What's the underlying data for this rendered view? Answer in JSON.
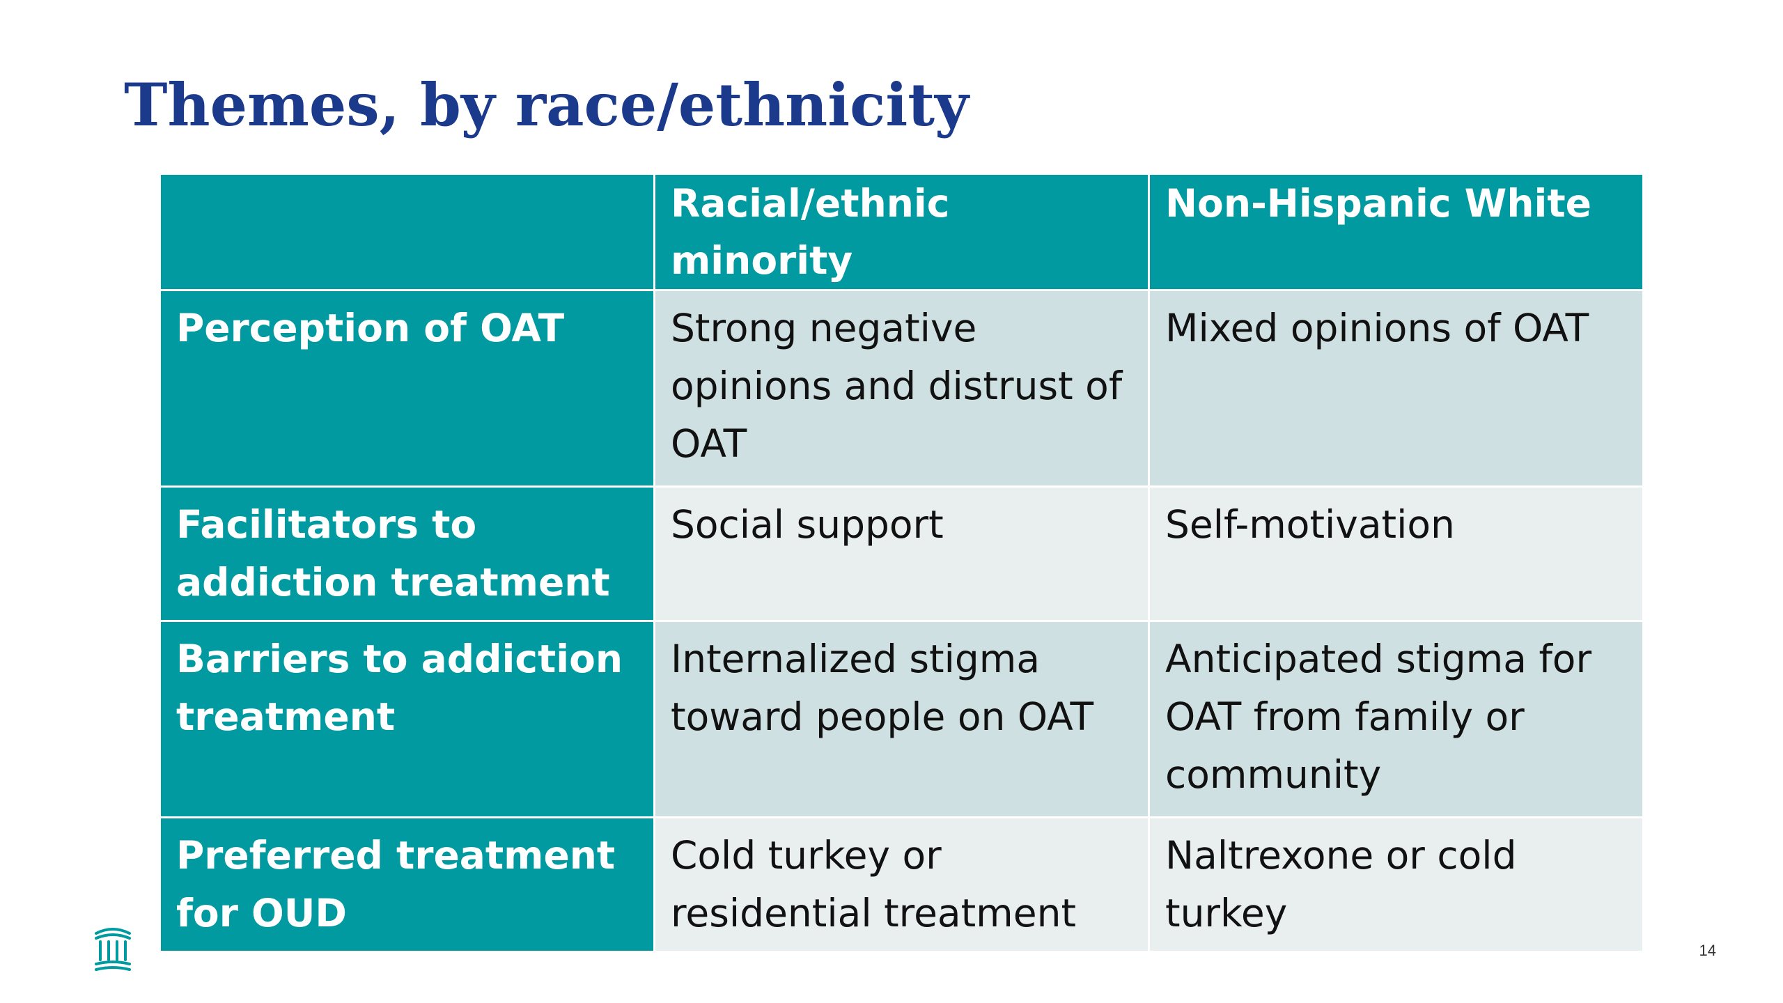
{
  "slide": {
    "title": "Themes, by race/ethnicity",
    "page_number": "14",
    "logo_icon": "institution-columns-icon",
    "colors": {
      "title": "#1b3a8c",
      "header_teal": "#009aa0",
      "row_dark": "#cfe0e2",
      "row_light": "#e9efef"
    }
  },
  "table": {
    "headers": [
      "",
      "Racial/ethnic minority",
      "Non-Hispanic White"
    ],
    "rows": [
      {
        "label": "Perception of OAT",
        "minority": "Strong negative opinions and distrust of OAT",
        "white": "Mixed opinions of OAT"
      },
      {
        "label": "Facilitators to addiction treatment",
        "minority": "Social support",
        "white": "Self-motivation"
      },
      {
        "label": "Barriers to addiction treatment",
        "minority": "Internalized stigma toward people on OAT",
        "white": "Anticipated stigma for OAT from family or community"
      },
      {
        "label": "Preferred treatment for OUD",
        "minority": "Cold turkey or residential treatment",
        "white": "Naltrexone or cold turkey"
      }
    ]
  }
}
